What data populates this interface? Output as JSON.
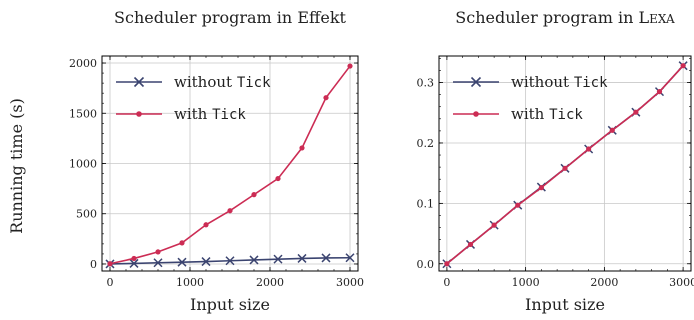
{
  "figure": {
    "ylabel": "Running time (s)"
  },
  "chart_data": [
    {
      "type": "line",
      "title": "Scheduler program in Effekt",
      "xlabel": "Input size",
      "ylabel": "Running time (s)",
      "xlim": [
        -100,
        3100
      ],
      "ylim": [
        -70,
        2070
      ],
      "xticks": [
        0,
        1000,
        2000,
        3000
      ],
      "yticks": [
        0,
        500,
        1000,
        1500,
        2000
      ],
      "xtick_labels": [
        "0",
        "1000",
        "2000",
        "3000"
      ],
      "ytick_labels": [
        "0",
        "500",
        "1000",
        "1500",
        "2000"
      ],
      "grid": true,
      "legend_position": "top-left",
      "x": [
        0,
        300,
        600,
        900,
        1200,
        1500,
        1800,
        2100,
        2400,
        2700,
        3000
      ],
      "series": [
        {
          "name": "without Tick",
          "name_parts": [
            "without ",
            "Tick"
          ],
          "color": "#3b4470",
          "marker": "x",
          "values": [
            0,
            5,
            12,
            18,
            24,
            32,
            40,
            48,
            55,
            60,
            62
          ]
        },
        {
          "name": "with Tick",
          "name_parts": [
            "with ",
            "Tick"
          ],
          "color": "#cc2c54",
          "marker": "dot",
          "values": [
            2,
            55,
            120,
            210,
            390,
            530,
            690,
            850,
            1155,
            1655,
            1970
          ]
        }
      ]
    },
    {
      "type": "line",
      "title": "Scheduler program in Lexa",
      "title_parts": [
        "Scheduler program in L",
        "EXA"
      ],
      "xlabel": "Input size",
      "ylabel": "",
      "xlim": [
        -100,
        3100
      ],
      "ylim": [
        -0.012,
        0.344
      ],
      "xticks": [
        0,
        1000,
        2000,
        3000
      ],
      "yticks": [
        0.0,
        0.1,
        0.2,
        0.3
      ],
      "xtick_labels": [
        "0",
        "1000",
        "2000",
        "3000"
      ],
      "ytick_labels": [
        "0.0",
        "0.1",
        "0.2",
        "0.3"
      ],
      "grid": true,
      "legend_position": "top-left",
      "x": [
        0,
        300,
        600,
        900,
        1200,
        1500,
        1800,
        2100,
        2400,
        2700,
        3000
      ],
      "series": [
        {
          "name": "without Tick",
          "name_parts": [
            "without ",
            "Tick"
          ],
          "color": "#3b4470",
          "marker": "x",
          "values": [
            0.0,
            0.032,
            0.064,
            0.097,
            0.127,
            0.158,
            0.19,
            0.221,
            0.251,
            0.285,
            0.328
          ]
        },
        {
          "name": "with Tick",
          "name_parts": [
            "with ",
            "Tick"
          ],
          "color": "#cc2c54",
          "marker": "dot",
          "values": [
            0.0,
            0.032,
            0.064,
            0.097,
            0.126,
            0.158,
            0.19,
            0.221,
            0.251,
            0.285,
            0.328
          ]
        }
      ]
    }
  ]
}
